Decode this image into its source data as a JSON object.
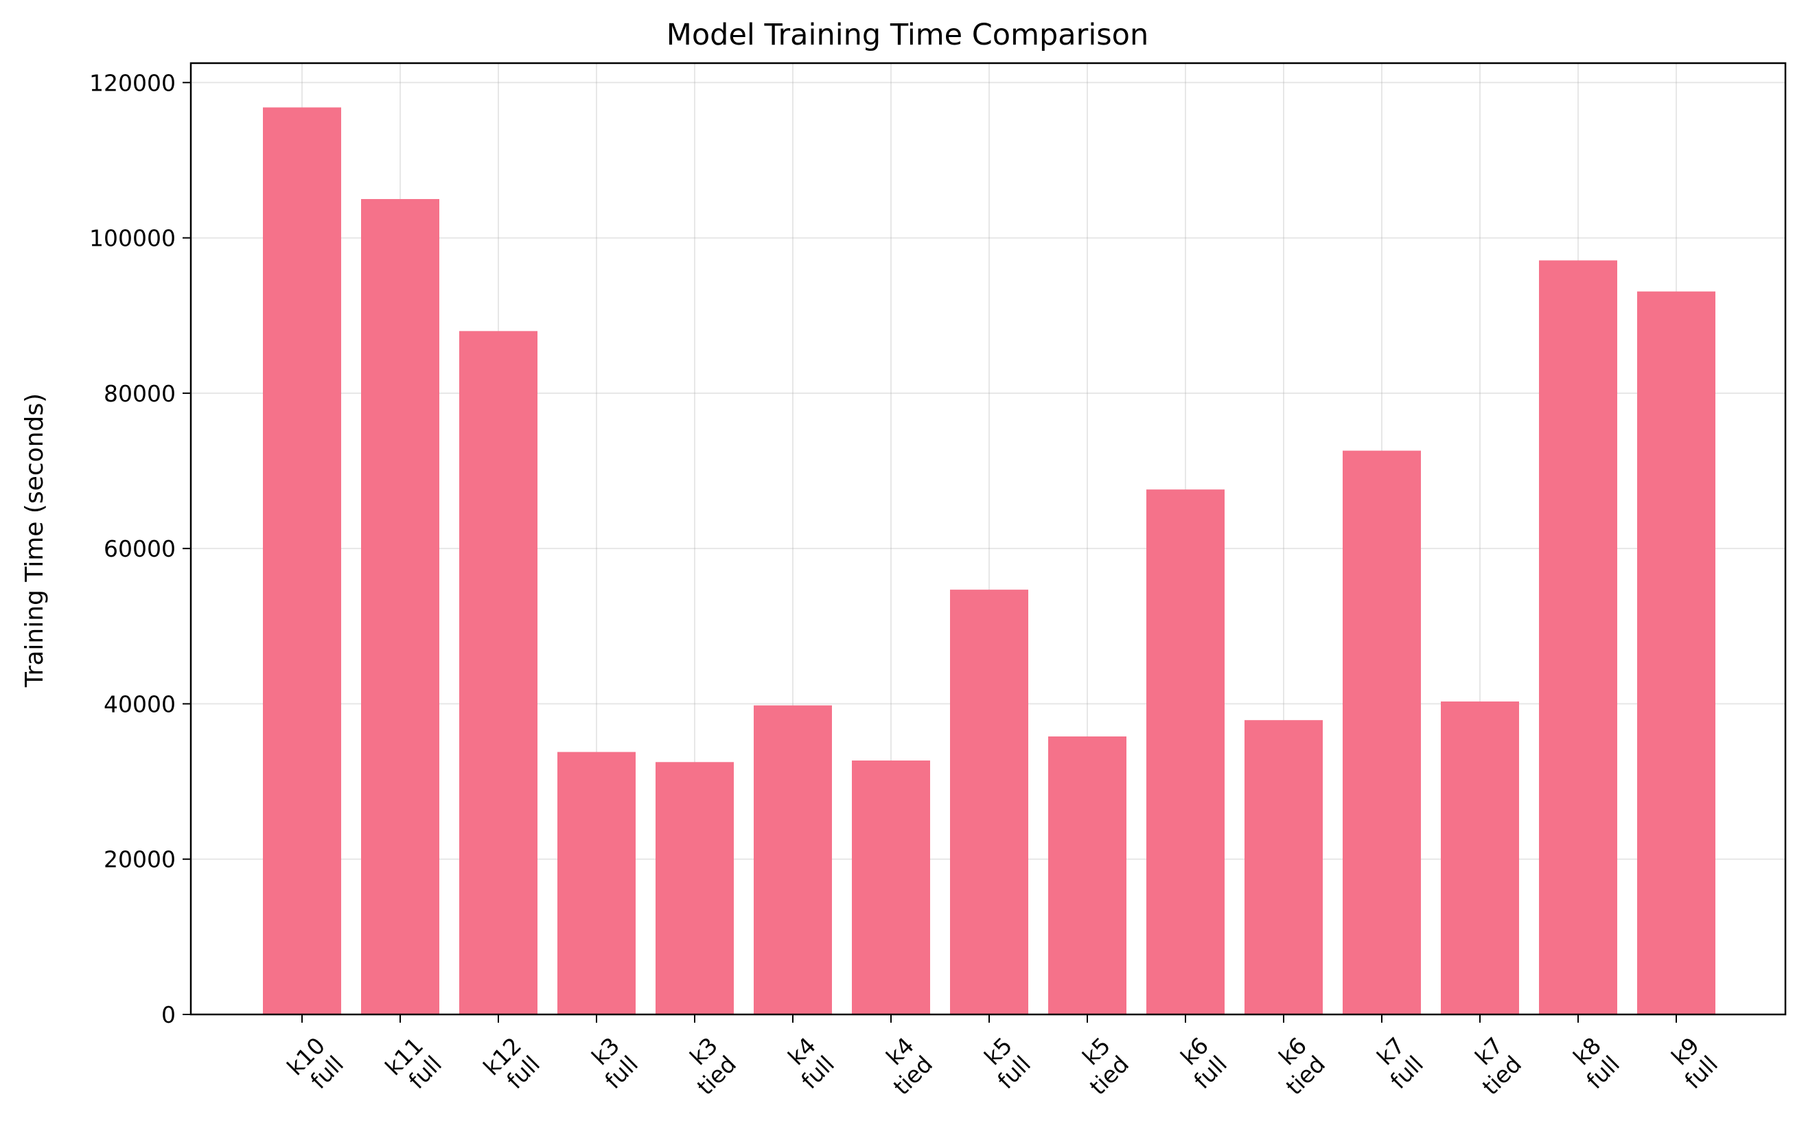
{
  "chart_data": {
    "type": "bar",
    "title": "Model Training Time Comparison",
    "xlabel": "",
    "ylabel": "Training Time (seconds)",
    "categories": [
      [
        "k10",
        "full"
      ],
      [
        "k11",
        "full"
      ],
      [
        "k12",
        "full"
      ],
      [
        "k3",
        "full"
      ],
      [
        "k3",
        "tied"
      ],
      [
        "k4",
        "full"
      ],
      [
        "k4",
        "tied"
      ],
      [
        "k5",
        "full"
      ],
      [
        "k5",
        "tied"
      ],
      [
        "k6",
        "full"
      ],
      [
        "k6",
        "tied"
      ],
      [
        "k7",
        "full"
      ],
      [
        "k7",
        "tied"
      ],
      [
        "k8",
        "full"
      ],
      [
        "k9",
        "full"
      ]
    ],
    "values": [
      116800,
      105000,
      88000,
      33800,
      32500,
      39800,
      32700,
      54700,
      35800,
      67600,
      37900,
      72600,
      40300,
      97100,
      93100
    ],
    "ylim": [
      0,
      122500
    ],
    "yticks": [
      0,
      20000,
      40000,
      60000,
      80000,
      100000,
      120000
    ],
    "grid": true,
    "legend": "none",
    "colors": {
      "bar": "#f5728a",
      "axis": "#000000",
      "grid": "#b0b0b0"
    }
  }
}
